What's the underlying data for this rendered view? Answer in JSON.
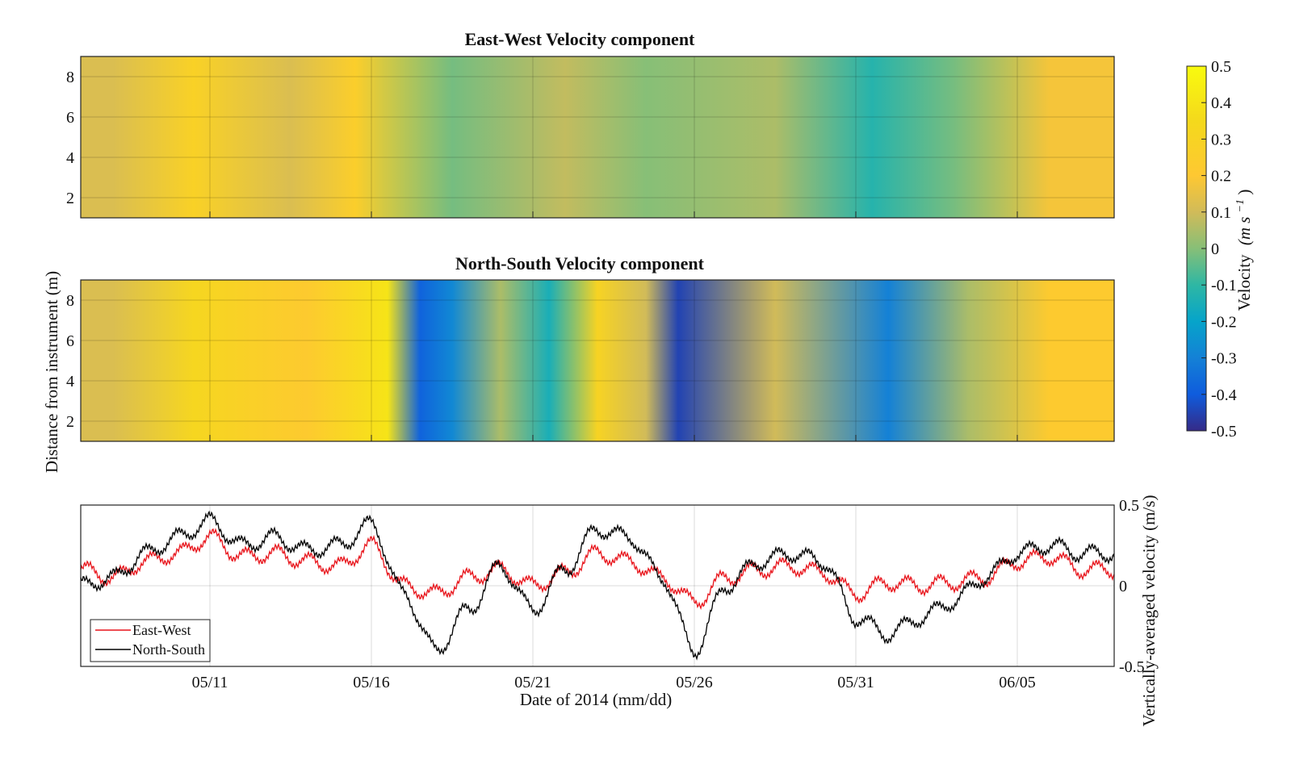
{
  "chart_data": [
    {
      "type": "heatmap",
      "title": "East-West Velocity component",
      "x_range": [
        "2014-05-07",
        "2014-06-08"
      ],
      "ylim": [
        1,
        9
      ],
      "yticks": [
        2,
        4,
        6,
        8
      ],
      "xticks": [
        "05/11",
        "05/16",
        "05/21",
        "05/26",
        "05/31",
        "06/05"
      ],
      "grid": true,
      "segments": [
        {
          "from": "05/07",
          "to": "05/09",
          "value": 0.12
        },
        {
          "from": "05/09",
          "to": "05/12",
          "value": 0.28
        },
        {
          "from": "05/12",
          "to": "05/15",
          "value": 0.12
        },
        {
          "from": "05/15",
          "to": "05/16",
          "value": 0.25
        },
        {
          "from": "05/16",
          "to": "05/21",
          "value": -0.02
        },
        {
          "from": "05/21",
          "to": "05/23",
          "value": 0.08
        },
        {
          "from": "05/23",
          "to": "05/26",
          "value": 0.0
        },
        {
          "from": "05/26",
          "to": "05/31",
          "value": 0.05
        },
        {
          "from": "05/31",
          "to": "06/01",
          "value": -0.12
        },
        {
          "from": "06/01",
          "to": "06/05",
          "value": -0.02
        },
        {
          "from": "06/05",
          "to": "06/07",
          "value": 0.18
        }
      ]
    },
    {
      "type": "heatmap",
      "title": "North-South Velocity component",
      "x_range": [
        "2014-05-07",
        "2014-06-08"
      ],
      "ylim": [
        1,
        9
      ],
      "yticks": [
        2,
        4,
        6,
        8
      ],
      "xticks": [
        "05/11",
        "05/16",
        "05/21",
        "05/26",
        "05/31",
        "06/05"
      ],
      "grid": true,
      "segments": [
        {
          "from": "05/07",
          "to": "05/09",
          "value": 0.12
        },
        {
          "from": "05/09",
          "to": "05/12",
          "value": 0.32
        },
        {
          "from": "05/12",
          "to": "05/16",
          "value": 0.22
        },
        {
          "from": "05/16",
          "to": "05/17",
          "value": 0.4
        },
        {
          "from": "05/17",
          "to": "05/18",
          "value": -0.38
        },
        {
          "from": "05/18",
          "to": "05/19",
          "value": -0.28
        },
        {
          "from": "05/19",
          "to": "05/21",
          "value": 0.05
        },
        {
          "from": "05/21",
          "to": "05/22",
          "value": -0.15
        },
        {
          "from": "05/22",
          "to": "05/24",
          "value": 0.3
        },
        {
          "from": "05/24",
          "to": "05/25",
          "value": 0.1
        },
        {
          "from": "05/25",
          "to": "05/26",
          "value": -0.45
        },
        {
          "from": "05/26",
          "to": "05/31",
          "value": 0.1
        },
        {
          "from": "05/31",
          "to": "06/02",
          "value": -0.3
        },
        {
          "from": "06/02",
          "to": "06/05",
          "value": 0.05
        },
        {
          "from": "06/05",
          "to": "06/07",
          "value": 0.22
        }
      ]
    },
    {
      "type": "line",
      "title": "",
      "xlabel": "Date of 2014 (mm/dd)",
      "ylabel": "Vertically-averaged velocity (m/s)",
      "ylim": [
        -0.5,
        0.5
      ],
      "yticks": [
        -0.5,
        0,
        0.5
      ],
      "xticks": [
        "05/11",
        "05/16",
        "05/21",
        "05/26",
        "05/31",
        "06/05"
      ],
      "grid": true,
      "legend": "bottom-left",
      "series": [
        {
          "name": "East-West",
          "color": "#e8141b",
          "x": [
            "05/07",
            "05/08",
            "05/09",
            "05/10",
            "05/11",
            "05/12",
            "05/13",
            "05/14",
            "05/15",
            "05/16",
            "05/17",
            "05/18",
            "05/19",
            "05/20",
            "05/21",
            "05/22",
            "05/23",
            "05/24",
            "05/25",
            "05/26",
            "05/27",
            "05/28",
            "05/29",
            "05/30",
            "05/31",
            "06/01",
            "06/02",
            "06/03",
            "06/04",
            "06/05",
            "06/06",
            "06/07"
          ],
          "values": [
            0.1,
            0.05,
            0.15,
            0.2,
            0.3,
            0.18,
            0.2,
            0.15,
            0.12,
            0.25,
            0.0,
            -0.05,
            0.05,
            0.1,
            0.0,
            0.08,
            0.2,
            0.15,
            0.05,
            -0.1,
            0.05,
            0.1,
            0.12,
            0.08,
            -0.05,
            0.02,
            0.0,
            0.02,
            0.05,
            0.15,
            0.18,
            0.1
          ]
        },
        {
          "name": "North-South",
          "color": "#000000",
          "x": [
            "05/07",
            "05/08",
            "05/09",
            "05/10",
            "05/11",
            "05/12",
            "05/13",
            "05/14",
            "05/15",
            "05/16",
            "05/17",
            "05/18",
            "05/19",
            "05/20",
            "05/21",
            "05/22",
            "05/23",
            "05/24",
            "05/25",
            "05/26",
            "05/27",
            "05/28",
            "05/29",
            "05/30",
            "05/31",
            "06/01",
            "06/02",
            "06/03",
            "06/04",
            "06/05",
            "06/06",
            "06/07"
          ],
          "values": [
            0.0,
            0.05,
            0.2,
            0.3,
            0.4,
            0.25,
            0.3,
            0.22,
            0.25,
            0.38,
            -0.05,
            -0.4,
            -0.15,
            0.12,
            -0.15,
            0.1,
            0.35,
            0.3,
            0.05,
            -0.4,
            0.0,
            0.15,
            0.2,
            0.15,
            -0.2,
            -0.3,
            -0.2,
            -0.1,
            0.05,
            0.2,
            0.25,
            0.2
          ]
        }
      ]
    }
  ],
  "colorbar": {
    "label": "Velocity",
    "unit": "(m s",
    "unit_exp": "−1",
    "unit_close": ")",
    "ticks": [
      "0.5",
      "0.4",
      "0.3",
      "0.2",
      "0.1",
      "0",
      "-0.1",
      "-0.2",
      "-0.3",
      "-0.4",
      "-0.5"
    ],
    "range": [
      -0.5,
      0.5
    ],
    "colormap": "parula"
  },
  "shared_ylabel": "Distance from instrument (m)"
}
